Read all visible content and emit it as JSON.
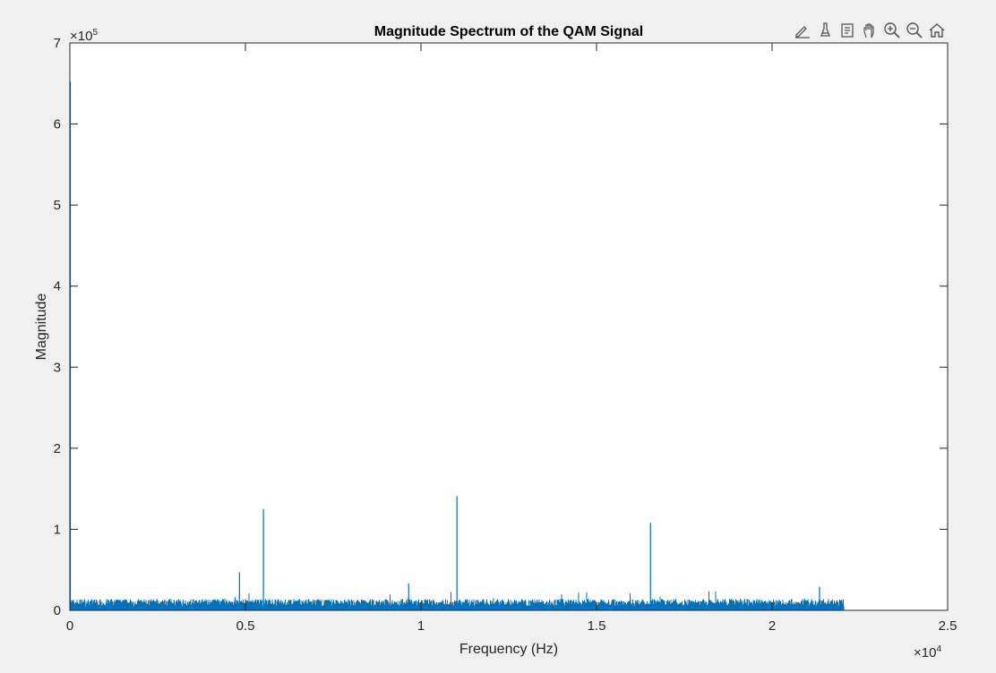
{
  "chart_data": {
    "type": "line",
    "title": "Magnitude Spectrum of the QAM Signal",
    "xlabel": "Frequency (Hz)",
    "ylabel": "Magnitude",
    "xlim": [
      0,
      25000
    ],
    "ylim": [
      0,
      700000
    ],
    "x_exponent_label": "×10",
    "x_exponent": "4",
    "y_exponent_label": "×10",
    "y_exponent": "5",
    "xticks": [
      0,
      5000,
      10000,
      15000,
      20000,
      25000
    ],
    "xtick_labels": [
      "0",
      "0.5",
      "1",
      "1.5",
      "2",
      "2.5"
    ],
    "yticks": [
      0,
      100000,
      200000,
      300000,
      400000,
      500000,
      600000,
      700000
    ],
    "ytick_labels": [
      "0",
      "1",
      "2",
      "3",
      "4",
      "5",
      "6",
      "7"
    ],
    "line_color": "#0072BD",
    "grid": false,
    "legend": "none",
    "series": [
      {
        "x_range": [
          0,
          22050
        ],
        "noise_floor": 14000,
        "peaks": [
          {
            "x": 0,
            "y": 652000
          },
          {
            "x": 4830,
            "y": 47000
          },
          {
            "x": 5512,
            "y": 125000
          },
          {
            "x": 9650,
            "y": 33000
          },
          {
            "x": 11025,
            "y": 141000
          },
          {
            "x": 16537,
            "y": 108000
          },
          {
            "x": 21350,
            "y": 29000
          }
        ]
      }
    ]
  },
  "toolbar": {
    "icons": [
      "edit-plot-icon",
      "brush-icon",
      "data-tips-icon",
      "pan-icon",
      "zoom-in-icon",
      "zoom-out-icon",
      "home-icon"
    ]
  }
}
